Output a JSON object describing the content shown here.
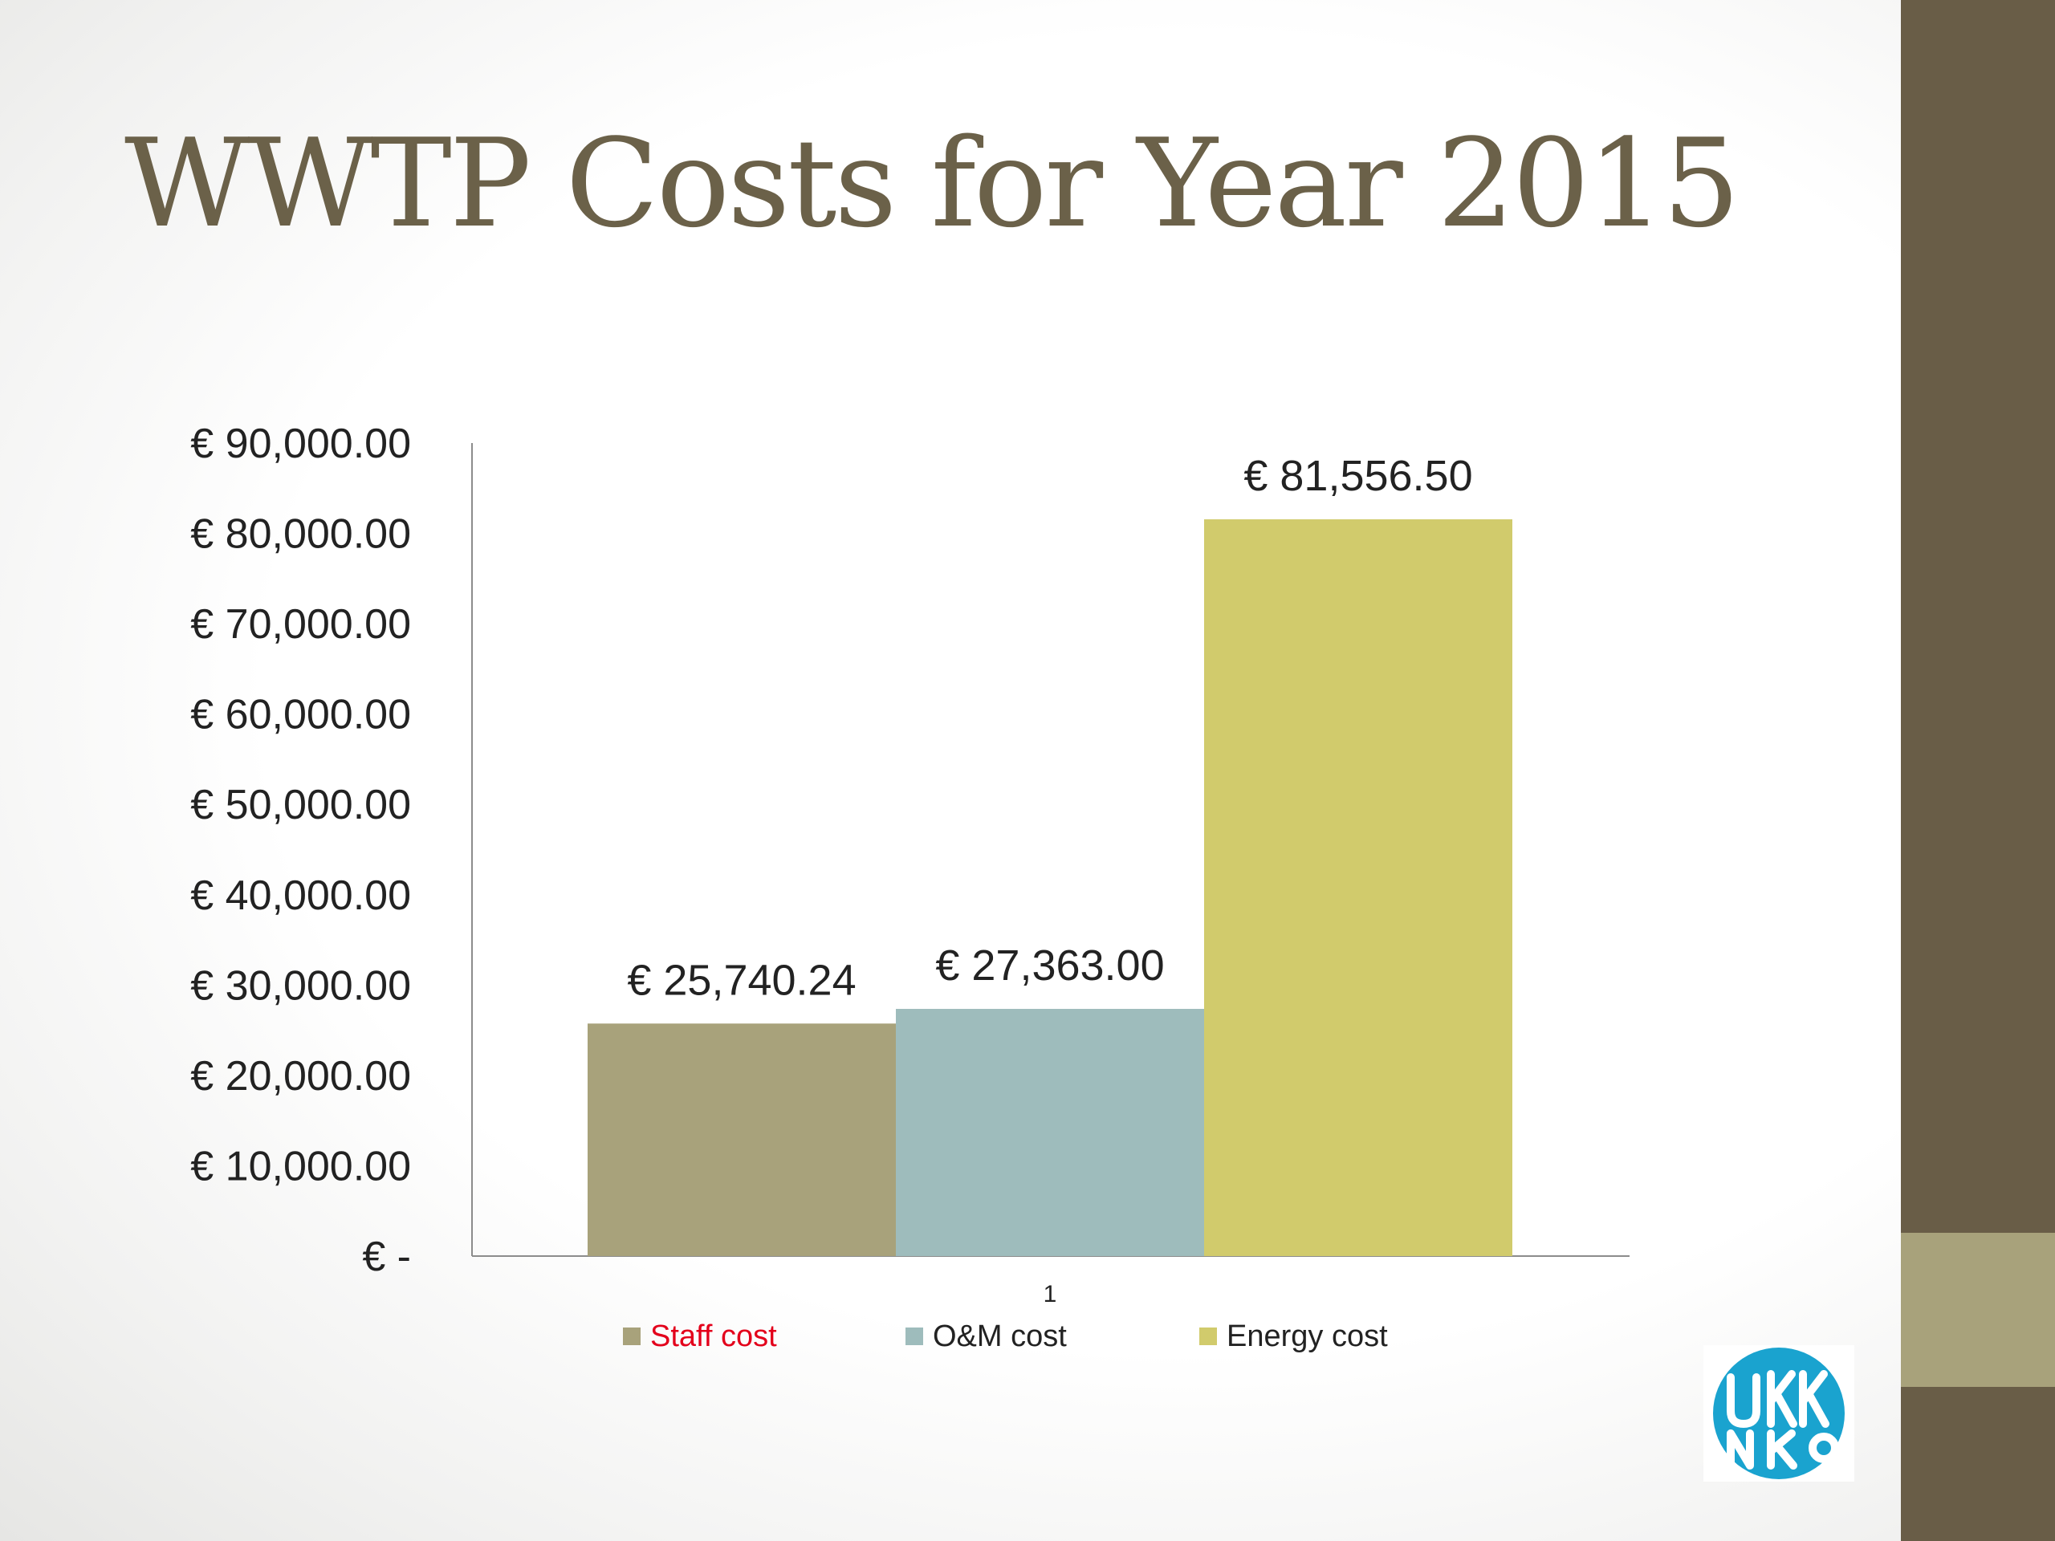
{
  "slide": {
    "title": "WWTP Costs for Year 2015",
    "colors": {
      "side_bar": "#695d47",
      "side_accent": "#a8a27b",
      "title": "#6b6149"
    }
  },
  "chart_data": {
    "type": "bar",
    "title": "",
    "xlabel": "",
    "ylabel": "",
    "categories": [
      "1"
    ],
    "series": [
      {
        "name": "Staff cost",
        "values": [
          25740.24
        ],
        "label": "€ 25,740.24",
        "color": "#a8a27b",
        "legend_text_color": "#e3001b"
      },
      {
        "name": "O&M cost",
        "values": [
          27363.0
        ],
        "label": "€ 27,363.00",
        "color": "#9ebcbc",
        "legend_text_color": "#222222"
      },
      {
        "name": "Energy cost",
        "values": [
          81556.5
        ],
        "label": "€ 81,556.50",
        "color": "#d1cb6c",
        "legend_text_color": "#222222"
      }
    ],
    "ylim": [
      0,
      90000
    ],
    "yticks": [
      0,
      10000,
      20000,
      30000,
      40000,
      50000,
      60000,
      70000,
      80000,
      90000
    ],
    "ytick_labels": [
      "€ -",
      "€ 10,000.00",
      "€ 20,000.00",
      "€ 30,000.00",
      "€ 40,000.00",
      "€ 50,000.00",
      "€ 60,000.00",
      "€ 70,000.00",
      "€ 80,000.00",
      "€ 90,000.00"
    ],
    "grid": false,
    "legend": "bottom"
  },
  "logo": {
    "color": "#1aa3cf"
  }
}
